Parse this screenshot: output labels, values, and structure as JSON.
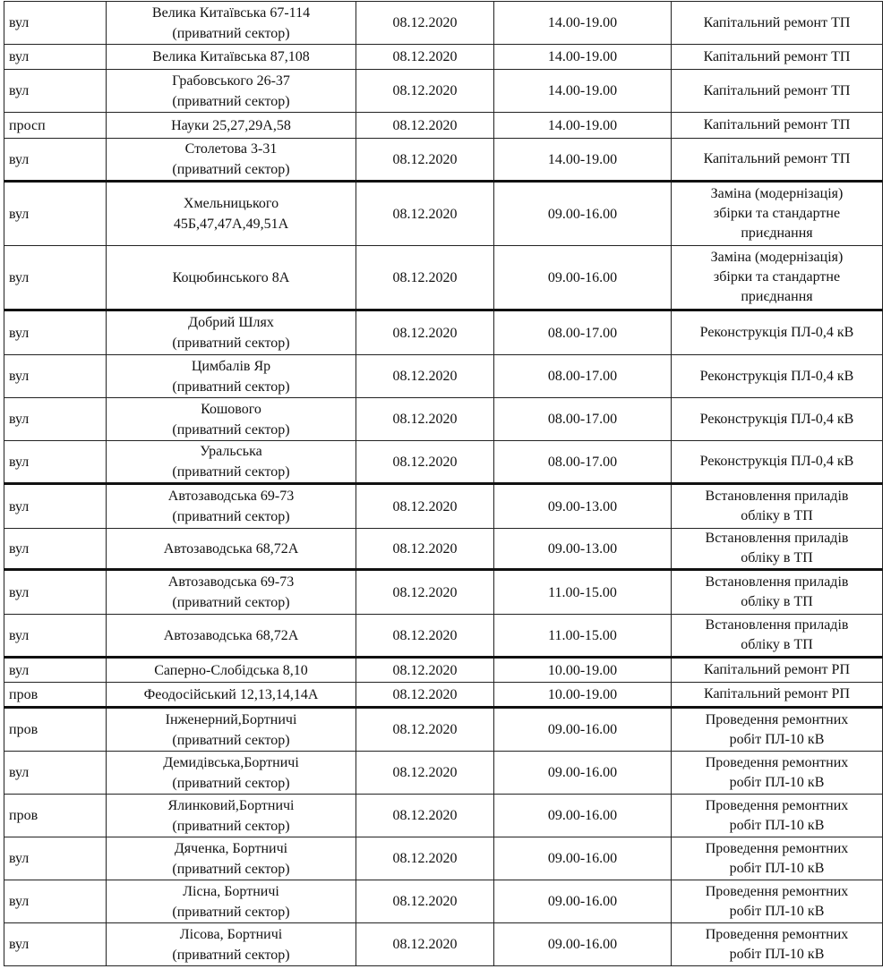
{
  "rows": [
    {
      "type": "вул",
      "addr": [
        "Велика Китаївська 67-114",
        "(приватний сектор)"
      ],
      "date": "08.12.2020",
      "time": "14.00-19.00",
      "work": [
        "Капітальний ремонт ТП"
      ]
    },
    {
      "type": "вул",
      "addr": [
        "Велика Китаївська 87,108"
      ],
      "date": "08.12.2020",
      "time": "14.00-19.00",
      "work": [
        "Капітальний ремонт ТП"
      ]
    },
    {
      "type": "вул",
      "addr": [
        "Грабовського 26-37",
        "(приватний сектор)"
      ],
      "date": "08.12.2020",
      "time": "14.00-19.00",
      "work": [
        "Капітальний ремонт ТП"
      ]
    },
    {
      "type": "просп",
      "addr": [
        "Науки 25,27,29А,58"
      ],
      "date": "08.12.2020",
      "time": "14.00-19.00",
      "work": [
        "Капітальний ремонт ТП"
      ]
    },
    {
      "type": "вул",
      "addr": [
        "Столетова 3-31",
        "(приватний сектор)"
      ],
      "date": "08.12.2020",
      "time": "14.00-19.00",
      "work": [
        "Капітальний ремонт ТП"
      ]
    },
    {
      "type": "вул",
      "addr": [
        "Хмельницького",
        "45Б,47,47А,49,51А"
      ],
      "date": "08.12.2020",
      "time": "09.00-16.00",
      "work": [
        "Заміна (модернізація)",
        "збірки та стандартне",
        "приєднання"
      ]
    },
    {
      "type": "вул",
      "addr": [
        "Коцюбинського 8А"
      ],
      "date": "08.12.2020",
      "time": "09.00-16.00",
      "work": [
        "Заміна (модернізація)",
        "збірки та стандартне",
        "приєднання"
      ]
    },
    {
      "type": "вул",
      "addr": [
        "Добрий Шлях",
        "(приватний сектор)"
      ],
      "date": "08.12.2020",
      "time": "08.00-17.00",
      "work": [
        "Реконструкція ПЛ-0,4 кВ"
      ]
    },
    {
      "type": "вул",
      "addr": [
        "Цимбалів Яр",
        "(приватний сектор)"
      ],
      "date": "08.12.2020",
      "time": "08.00-17.00",
      "work": [
        "Реконструкція ПЛ-0,4 кВ"
      ]
    },
    {
      "type": "вул",
      "addr": [
        "Кошового",
        "(приватний сектор)"
      ],
      "date": "08.12.2020",
      "time": "08.00-17.00",
      "work": [
        "Реконструкція ПЛ-0,4 кВ"
      ]
    },
    {
      "type": "вул",
      "addr": [
        "Уральська",
        "(приватний сектор)"
      ],
      "date": "08.12.2020",
      "time": "08.00-17.00",
      "work": [
        "Реконструкція ПЛ-0,4 кВ"
      ]
    },
    {
      "type": "вул",
      "addr": [
        "Автозаводська 69-73",
        "(приватний сектор)"
      ],
      "date": "08.12.2020",
      "time": "09.00-13.00",
      "work": [
        "Встановлення приладів",
        "обліку в ТП"
      ]
    },
    {
      "type": "вул",
      "addr": [
        "Автозаводська 68,72А"
      ],
      "date": "08.12.2020",
      "time": "09.00-13.00",
      "work": [
        "Встановлення приладів",
        "обліку в ТП"
      ]
    },
    {
      "type": "вул",
      "addr": [
        "Автозаводська 69-73",
        "(приватний сектор)"
      ],
      "date": "08.12.2020",
      "time": "11.00-15.00",
      "work": [
        "Встановлення приладів",
        "обліку в ТП"
      ]
    },
    {
      "type": "вул",
      "addr": [
        "Автозаводська 68,72А"
      ],
      "date": "08.12.2020",
      "time": "11.00-15.00",
      "work": [
        "Встановлення приладів",
        "обліку в ТП"
      ]
    },
    {
      "type": "вул",
      "addr": [
        "Саперно-Слобідська 8,10"
      ],
      "date": "08.12.2020",
      "time": "10.00-19.00",
      "work": [
        "Капітальний ремонт РП"
      ]
    },
    {
      "type": "пров",
      "addr": [
        "Феодосійський 12,13,14,14А"
      ],
      "date": "08.12.2020",
      "time": "10.00-19.00",
      "work": [
        "Капітальний ремонт РП"
      ]
    },
    {
      "type": "пров",
      "addr": [
        "Інженерний,Бортничі",
        "(приватний сектор)"
      ],
      "date": "08.12.2020",
      "time": "09.00-16.00",
      "work": [
        "Проведення ремонтних",
        "робіт ПЛ-10 кВ"
      ]
    },
    {
      "type": "вул",
      "addr": [
        "Демидівська,Бортничі",
        "(приватний сектор)"
      ],
      "date": "08.12.2020",
      "time": "09.00-16.00",
      "work": [
        "Проведення ремонтних",
        "робіт ПЛ-10 кВ"
      ]
    },
    {
      "type": "пров",
      "addr": [
        "Ялинковий,Бортничі",
        "(приватний сектор)"
      ],
      "date": "08.12.2020",
      "time": "09.00-16.00",
      "work": [
        "Проведення ремонтних",
        "робіт ПЛ-10 кВ"
      ]
    },
    {
      "type": "вул",
      "addr": [
        "Дяченка, Бортничі",
        "(приватний сектор)"
      ],
      "date": "08.12.2020",
      "time": "09.00-16.00",
      "work": [
        "Проведення ремонтних",
        "робіт ПЛ-10 кВ"
      ]
    },
    {
      "type": "вул",
      "addr": [
        "Лісна, Бортничі",
        "(приватний сектор)"
      ],
      "date": "08.12.2020",
      "time": "09.00-16.00",
      "work": [
        "Проведення ремонтних",
        "робіт ПЛ-10 кВ"
      ]
    },
    {
      "type": "вул",
      "addr": [
        "Лісова, Бортничі",
        "(приватний сектор)"
      ],
      "date": "08.12.2020",
      "time": "09.00-16.00",
      "work": [
        "Проведення ремонтних",
        "робіт ПЛ-10 кВ"
      ]
    }
  ]
}
